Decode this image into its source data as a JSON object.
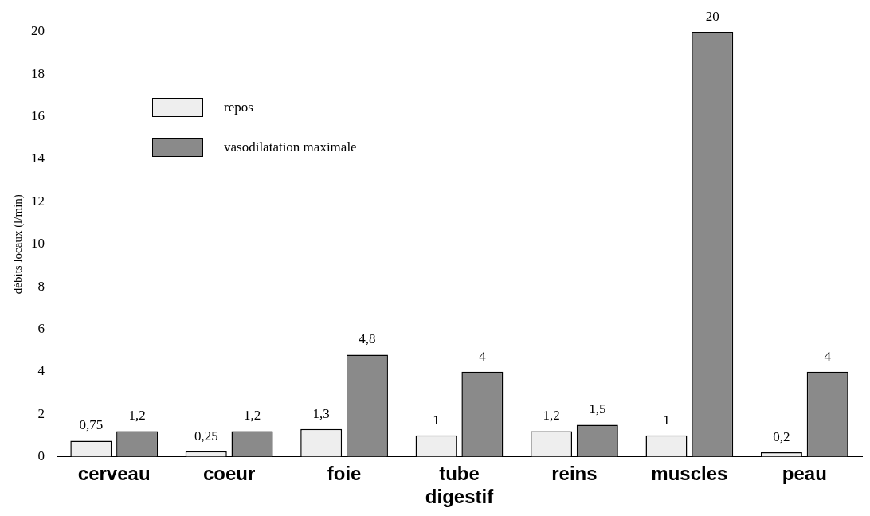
{
  "chart_data": {
    "type": "bar",
    "ylabel": "débits locaux (l/min)",
    "categories": [
      "cerveau",
      "coeur",
      "foie",
      "tube digestif",
      "reins",
      "muscles",
      "peau"
    ],
    "series": [
      {
        "name": "repos",
        "color": "#eeeeee",
        "values": [
          0.75,
          0.25,
          1.3,
          1,
          1.2,
          1,
          0.2
        ],
        "value_labels": [
          "0,75",
          "0,25",
          "1,3",
          "1",
          "1,2",
          "1",
          "0,2"
        ]
      },
      {
        "name": "vasodilatation maximale",
        "color": "#8a8a8a",
        "values": [
          1.2,
          1.2,
          4.8,
          4,
          1.5,
          20,
          4
        ],
        "value_labels": [
          "1,2",
          "1,2",
          "4,8",
          "4",
          "1,5",
          "20",
          "4"
        ]
      }
    ],
    "ylim": [
      0,
      20
    ],
    "yticks": [
      0,
      2,
      4,
      6,
      8,
      10,
      12,
      14,
      16,
      18,
      20
    ],
    "grid": false,
    "legend": "top left"
  }
}
